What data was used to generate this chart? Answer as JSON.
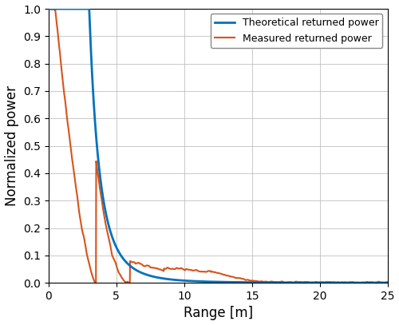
{
  "title": "",
  "xlabel": "Range [m]",
  "ylabel": "Normalized power",
  "xlim": [
    0,
    25
  ],
  "ylim": [
    0,
    1.0
  ],
  "xticks": [
    0,
    5,
    10,
    15,
    20,
    25
  ],
  "yticks": [
    0,
    0.1,
    0.2,
    0.3,
    0.4,
    0.5,
    0.6,
    0.7,
    0.8,
    0.9,
    1.0
  ],
  "theoretical_color": "#0072BD",
  "measured_color": "#D95319",
  "theoretical_linewidth": 2.0,
  "measured_linewidth": 1.5,
  "legend_labels": [
    "Theoretical returned power",
    "Measured returned power"
  ],
  "background_color": "#ffffff",
  "figsize": [
    5.0,
    4.07
  ],
  "dpi": 100
}
